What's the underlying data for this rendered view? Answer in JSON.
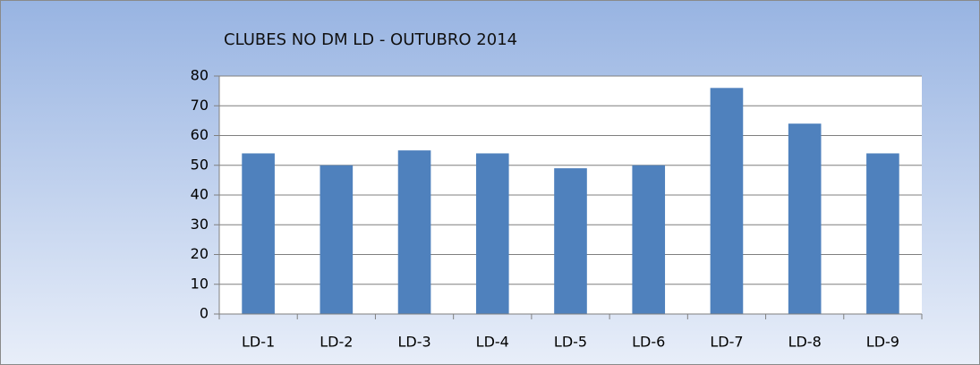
{
  "chart_data": {
    "type": "bar",
    "title": "CLUBES NO DM LD - OUTUBRO 2014",
    "categories": [
      "LD-1",
      "LD-2",
      "LD-3",
      "LD-4",
      "LD-5",
      "LD-6",
      "LD-7",
      "LD-8",
      "LD-9"
    ],
    "values": [
      54,
      50,
      55,
      54,
      49,
      50,
      76,
      64,
      54
    ],
    "color": "#4f81bd",
    "ylim": [
      0,
      80
    ],
    "yticks": [
      0,
      10,
      20,
      30,
      40,
      50,
      60,
      70,
      80
    ],
    "grid": true
  }
}
